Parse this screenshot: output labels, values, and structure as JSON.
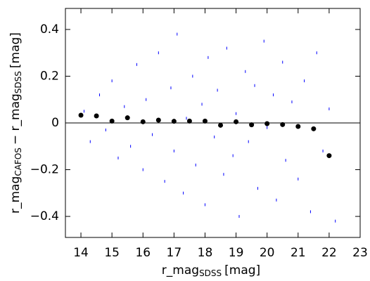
{
  "chart_data": {
    "type": "scatter",
    "x_label": "r_mag",
    "x_label_sub": "SDSS",
    "x_label_unit": "[mag]",
    "y_label": "r_mag",
    "y_label_sub": "CAFOS",
    "y_label_mid": "− r_mag",
    "y_label_sub2": "SDSS",
    "y_label_unit": "[mag]",
    "xlim": [
      13.5,
      23
    ],
    "ylim": [
      -0.49,
      0.49
    ],
    "xticks": [
      14,
      15,
      16,
      17,
      18,
      19,
      20,
      21,
      22,
      23
    ],
    "yticks": [
      {
        "value": -0.4,
        "label": "−0.4"
      },
      {
        "value": -0.2,
        "label": "−0.2"
      },
      0,
      0.2,
      0.4
    ],
    "zero_line": true,
    "series": [
      {
        "color": "#0000ff",
        "marker": "dash",
        "x": [
          14.1,
          14.3,
          14.6,
          14.8,
          15.0,
          15.2,
          15.4,
          15.6,
          15.8,
          16.0,
          16.1,
          16.3,
          16.5,
          16.7,
          16.9,
          17.0,
          17.1,
          17.3,
          17.4,
          17.6,
          17.7,
          17.9,
          18.0,
          18.1,
          18.3,
          18.4,
          18.6,
          18.7,
          18.9,
          19.0,
          19.1,
          19.3,
          19.4,
          19.6,
          19.7,
          19.9,
          20.0,
          20.2,
          20.3,
          20.5,
          20.6,
          20.8,
          21.0,
          21.2,
          21.4,
          21.6,
          21.8,
          22.0,
          22.2
        ],
        "values": [
          0.05,
          -0.08,
          0.12,
          -0.03,
          0.18,
          -0.15,
          0.07,
          -0.1,
          0.25,
          -0.2,
          0.1,
          -0.05,
          0.3,
          -0.25,
          0.15,
          -0.12,
          0.38,
          -0.3,
          0.02,
          0.2,
          -0.18,
          0.08,
          -0.35,
          0.28,
          -0.06,
          0.14,
          -0.22,
          0.32,
          -0.14,
          0.04,
          -0.4,
          0.22,
          -0.08,
          0.16,
          -0.28,
          0.35,
          -0.02,
          0.12,
          -0.33,
          0.26,
          -0.16,
          0.09,
          -0.24,
          0.18,
          -0.38,
          0.3,
          -0.12,
          0.06,
          -0.42
        ]
      },
      {
        "color": "#000000",
        "marker": "dot",
        "x": [
          14,
          14.5,
          15,
          15.5,
          16,
          16.5,
          17,
          17.5,
          18,
          18.5,
          19,
          19.5,
          20,
          20.5,
          21,
          21.5,
          22
        ],
        "values": [
          0.033,
          0.03,
          0.008,
          0.022,
          0.005,
          0.012,
          0.007,
          0.008,
          0.008,
          -0.01,
          0.005,
          -0.008,
          -0.003,
          -0.007,
          -0.015,
          -0.025,
          -0.14
        ]
      }
    ]
  }
}
